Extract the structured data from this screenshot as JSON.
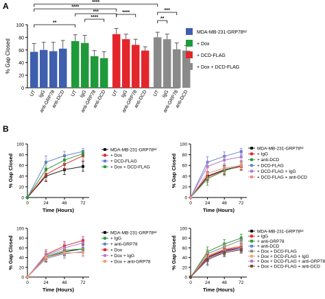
{
  "panels": {
    "a": "A",
    "b": "B"
  },
  "chart_data": [
    {
      "id": "A",
      "type": "bar",
      "ylabel": "% Gap Closed",
      "ylim": [
        0,
        100
      ],
      "yticks": [
        0,
        20,
        40,
        60,
        80,
        100
      ],
      "categories": [
        "UT",
        "IgG",
        "anti-GRP78",
        "anti-DCD"
      ],
      "series": [
        {
          "name": "MDA-MB-231-GRP78ᵏᵈ",
          "color": "#3f5fae",
          "values": [
            57,
            60,
            58,
            62
          ],
          "errors": [
            13,
            12,
            14,
            13
          ]
        },
        {
          "name": "+ Dox",
          "color": "#1f9a3a",
          "values": [
            74,
            71,
            50,
            47
          ],
          "errors": [
            10,
            12,
            9,
            10
          ]
        },
        {
          "name": "+ DCD-FLAG",
          "color": "#e3262b",
          "values": [
            85,
            77,
            68,
            59
          ],
          "errors": [
            9,
            8,
            9,
            6
          ]
        },
        {
          "name": "+ Dox + DCD-FLAG",
          "color": "#8a8a8a",
          "values": [
            80,
            77,
            61,
            59
          ],
          "errors": [
            8,
            8,
            10,
            8
          ]
        }
      ],
      "significance": [
        "****",
        "**",
        "***",
        "****",
        "****",
        "****",
        "**",
        "***"
      ],
      "legend": "right"
    },
    {
      "id": "B1",
      "type": "line",
      "xlabel": "Time (Hours)",
      "ylabel": "% Gap Closed",
      "x": [
        0,
        24,
        48,
        72
      ],
      "xlim": [
        0,
        80
      ],
      "ylim": [
        0,
        100
      ],
      "yticks": [
        0,
        20,
        40,
        60,
        80,
        100
      ],
      "series": [
        {
          "name": "MDA-MB-231-GRP78ᵏᵈ",
          "color": "#111111",
          "marker": "square",
          "values": [
            0,
            40,
            52,
            58
          ],
          "errors": [
            0,
            10,
            9,
            9
          ]
        },
        {
          "name": "+ Dox",
          "color": "#e3262b",
          "marker": "square",
          "values": [
            0,
            43,
            62,
            78
          ],
          "errors": [
            0,
            12,
            10,
            9
          ]
        },
        {
          "name": "+ DCD-FLAG",
          "color": "#6a7fd0",
          "marker": "square",
          "values": [
            0,
            66,
            78,
            86
          ],
          "errors": [
            0,
            12,
            8,
            6
          ]
        },
        {
          "name": "+ Dox + DCD-FLAG",
          "color": "#2a9a3a",
          "marker": "square",
          "values": [
            0,
            52,
            70,
            82
          ],
          "errors": [
            0,
            13,
            8,
            6
          ]
        }
      ],
      "legend": "right"
    },
    {
      "id": "B2",
      "type": "line",
      "xlabel": "Time (Hours)",
      "ylabel": "% Gap Closed",
      "x": [
        0,
        24,
        48,
        72
      ],
      "xlim": [
        0,
        80
      ],
      "ylim": [
        0,
        100
      ],
      "yticks": [
        0,
        20,
        40,
        60,
        80,
        100
      ],
      "series": [
        {
          "name": "MDA-MB-231-GRP78ᵏᵈ",
          "color": "#111111",
          "marker": "square",
          "values": [
            0,
            40,
            52,
            59
          ],
          "errors": [
            0,
            9,
            8,
            8
          ]
        },
        {
          "name": "+ IgG",
          "color": "#e3262b",
          "marker": "square",
          "values": [
            0,
            38,
            51,
            58
          ],
          "errors": [
            0,
            10,
            8,
            7
          ]
        },
        {
          "name": "+ anti-DCD",
          "color": "#2a9a3a",
          "marker": "square",
          "values": [
            0,
            35,
            50,
            60
          ],
          "errors": [
            0,
            12,
            9,
            8
          ]
        },
        {
          "name": "+ DCD-FLAG",
          "color": "#6a7fd0",
          "marker": "square",
          "values": [
            0,
            66,
            77,
            86
          ],
          "errors": [
            0,
            10,
            8,
            6
          ]
        },
        {
          "name": "+ DCD-FLAG + IgG",
          "color": "#b07ad0",
          "marker": "square",
          "values": [
            0,
            58,
            70,
            76
          ],
          "errors": [
            0,
            9,
            8,
            7
          ]
        },
        {
          "name": "+ DCD-FLAG + anti-DCD",
          "color": "#f08a8a",
          "marker": "square",
          "values": [
            0,
            45,
            55,
            60
          ],
          "errors": [
            0,
            10,
            8,
            7
          ]
        }
      ],
      "legend": "right"
    },
    {
      "id": "B3",
      "type": "line",
      "xlabel": "Time (Hours)",
      "ylabel": "% Gap Closed",
      "x": [
        0,
        24,
        48,
        72
      ],
      "xlim": [
        0,
        80
      ],
      "ylim": [
        0,
        100
      ],
      "yticks": [
        0,
        20,
        40,
        60,
        80,
        100
      ],
      "series": [
        {
          "name": "MDA-MB-231-GRP78ᵏᵈ",
          "color": "#111111",
          "marker": "square",
          "values": [
            0,
            40,
            52,
            58
          ],
          "errors": [
            0,
            8,
            8,
            8
          ]
        },
        {
          "name": "+ IgG",
          "color": "#2a9a3a",
          "marker": "square",
          "values": [
            0,
            42,
            55,
            58
          ],
          "errors": [
            0,
            9,
            8,
            7
          ]
        },
        {
          "name": "+ anti-GRP78",
          "color": "#6a7fd0",
          "marker": "square",
          "values": [
            0,
            38,
            48,
            52
          ],
          "errors": [
            0,
            8,
            9,
            8
          ]
        },
        {
          "name": "+ Dox",
          "color": "#e3262b",
          "marker": "square",
          "values": [
            0,
            46,
            64,
            75
          ],
          "errors": [
            0,
            10,
            9,
            8
          ]
        },
        {
          "name": "+ Dox + IgG",
          "color": "#b07ad0",
          "marker": "square",
          "values": [
            0,
            44,
            60,
            70
          ],
          "errors": [
            0,
            9,
            9,
            8
          ]
        },
        {
          "name": "+ Dox + anti-GRP78",
          "color": "#f0a070",
          "marker": "square",
          "values": [
            0,
            40,
            50,
            50
          ],
          "errors": [
            0,
            9,
            8,
            8
          ]
        }
      ],
      "legend": "right"
    },
    {
      "id": "B4",
      "type": "line",
      "xlabel": "Time (Hours)",
      "ylabel": "% Gap Closed",
      "x": [
        0,
        24,
        48,
        72
      ],
      "xlim": [
        0,
        80
      ],
      "ylim": [
        0,
        100
      ],
      "yticks": [
        0,
        20,
        40,
        60,
        80,
        100
      ],
      "series": [
        {
          "name": "MDA-MB-231-GRP78ᵏᵈ",
          "color": "#111111",
          "marker": "square",
          "values": [
            0,
            40,
            54,
            60
          ],
          "errors": [
            0,
            8,
            8,
            8
          ]
        },
        {
          "name": "+ IgG",
          "color": "#e3262b",
          "marker": "square",
          "values": [
            0,
            42,
            56,
            62
          ],
          "errors": [
            0,
            9,
            8,
            7
          ]
        },
        {
          "name": "+ anti-GRP78",
          "color": "#2a9a3a",
          "marker": "square",
          "values": [
            0,
            52,
            68,
            80
          ],
          "errors": [
            0,
            10,
            9,
            8
          ]
        },
        {
          "name": "+ anti-DCD",
          "color": "#6a7fd0",
          "marker": "square",
          "values": [
            0,
            35,
            52,
            60
          ],
          "errors": [
            0,
            12,
            10,
            9
          ]
        },
        {
          "name": "+ Dox + DCD-FLAG",
          "color": "#8a8a8a",
          "marker": "square",
          "values": [
            0,
            48,
            62,
            76
          ],
          "errors": [
            0,
            9,
            8,
            7
          ]
        },
        {
          "name": "+ Dox + DCD-FLAG + IgG",
          "color": "#f0a070",
          "marker": "square",
          "values": [
            0,
            44,
            58,
            64
          ],
          "errors": [
            0,
            9,
            8,
            7
          ]
        },
        {
          "name": "+ Dox + DCD-FLAG + anti-GRP78",
          "color": "#b07ad0",
          "marker": "square",
          "values": [
            0,
            38,
            52,
            58
          ],
          "errors": [
            0,
            9,
            8,
            7
          ]
        },
        {
          "name": "+ Dox + DCD-FLAG + anti-DCD",
          "color": "#7a4a2a",
          "marker": "square",
          "values": [
            0,
            36,
            50,
            56
          ],
          "errors": [
            0,
            10,
            8,
            7
          ]
        }
      ],
      "legend": "right"
    }
  ]
}
